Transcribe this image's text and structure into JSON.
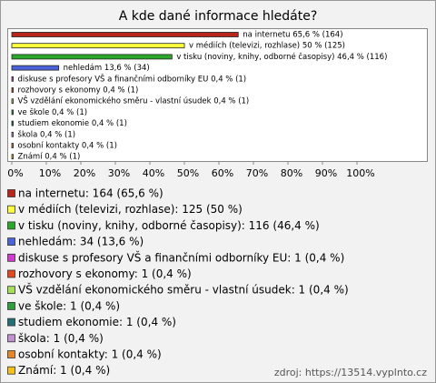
{
  "chart_data": {
    "type": "bar",
    "orientation": "horizontal",
    "title": "A kde dané informace hledáte?",
    "values": [
      65.6,
      50,
      46.4,
      13.6,
      0.4,
      0.4,
      0.4,
      0.4,
      0.4,
      0.4,
      0.4,
      0.4
    ],
    "value_labels": [
      "na internetu 65,6 % (164)",
      "v médiích (televizi, rozhlase) 50 % (125)",
      "v tisku (noviny, knihy, odborné časopisy) 46,4 % (116)",
      "nehledám 13,6 % (34)",
      "diskuse s profesory VŠ a finančními odborníky EU 0,4 % (1)",
      "rozhovory s ekonomy 0,4 % (1)",
      "VŠ vzdělání ekonomického směru - vlastní úsudek 0,4 % (1)",
      "ve škole 0,4 % (1)",
      "studiem ekonomie 0,4 % (1)",
      "škola 0,4 % (1)",
      "osobní kontakty 0,4 % (1)",
      "Známí 0,4 % (1)"
    ],
    "colors": [
      "#b8231a",
      "#ffff40",
      "#2aa82a",
      "#4a63d8",
      "#d23ad2",
      "#e04a1e",
      "#a6e05a",
      "#2e9e3e",
      "#226e74",
      "#c090d0",
      "#e8862a",
      "#f2c21a"
    ],
    "xlim": [
      0,
      100
    ],
    "xticks": [
      {
        "value": 0,
        "label": "0%"
      },
      {
        "value": 10,
        "label": "10%"
      },
      {
        "value": 20,
        "label": "20%"
      },
      {
        "value": 30,
        "label": "30%"
      },
      {
        "value": 40,
        "label": "40%"
      },
      {
        "value": 50,
        "label": "50%"
      },
      {
        "value": 60,
        "label": "60%"
      },
      {
        "value": 70,
        "label": "70%"
      },
      {
        "value": 80,
        "label": "80%"
      },
      {
        "value": 90,
        "label": "90%"
      },
      {
        "value": 100,
        "label": "100%"
      }
    ],
    "legend": [
      "na internetu: 164 (65,6 %)",
      "v médiích (televizi, rozhlase): 125 (50 %)",
      "v tisku (noviny, knihy, odborné časopisy): 116 (46,4 %)",
      "nehledám: 34 (13,6 %)",
      "diskuse s profesory VŠ a finančními odborníky EU: 1 (0,4 %)",
      "rozhovory s ekonomy: 1 (0,4 %)",
      "VŠ vzdělání ekonomického směru - vlastní úsudek: 1 (0,4 %)",
      "ve škole: 1 (0,4 %)",
      "studiem ekonomie: 1 (0,4 %)",
      "škola: 1 (0,4 %)",
      "osobní kontakty: 1 (0,4 %)",
      "Známí: 1 (0,4 %)"
    ],
    "source": "zdroj: https://13514.vyplnto.cz"
  }
}
